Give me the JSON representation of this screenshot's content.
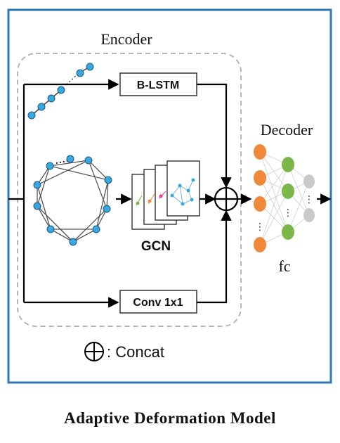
{
  "encoder": {
    "label": "Encoder"
  },
  "decoder": {
    "label": "Decoder",
    "sublabel": "fc"
  },
  "modules": {
    "blstm": "B-LSTM",
    "gcn": "GCN",
    "conv": "Conv 1x1"
  },
  "legend": {
    "symbol": "⊕",
    "text": ": Concat"
  },
  "caption": "Adaptive Deformation Model",
  "colors": {
    "frame": "#2e78b6",
    "node_blue": "#3aa7dc",
    "node_orange": "#f0883a",
    "node_green": "#7ab648",
    "node_gray": "#c9c9c9",
    "dashed": "#b5b5b5"
  }
}
